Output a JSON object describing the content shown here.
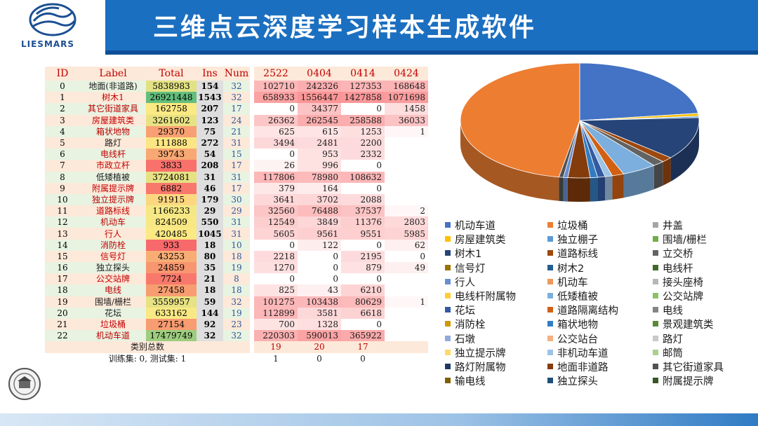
{
  "title": "三维点云深度学习样本生成软件",
  "logo_text": "LIESMARS",
  "table": {
    "headers": [
      "ID",
      "Label",
      "Total",
      "Ins",
      "Num",
      "2522",
      "0404",
      "0414",
      "0424"
    ],
    "rows": [
      {
        "id": "0",
        "label": "地面(非道路)",
        "total": "5838983",
        "ins": "154",
        "num": "32",
        "d": [
          "102710",
          "242326",
          "127353",
          "168648"
        ],
        "red": false,
        "tc": "#e2e184"
      },
      {
        "id": "1",
        "label": "树木1",
        "total": "26921448",
        "ins": "1543",
        "num": "32",
        "d": [
          "658933",
          "1556447",
          "1427858",
          "1071698"
        ],
        "red": true,
        "tc": "#63be7b"
      },
      {
        "id": "2",
        "label": "其它街道家具",
        "total": "162758",
        "ins": "207",
        "num": "17",
        "d": [
          "0",
          "34377",
          "0",
          "1458"
        ],
        "red": true,
        "tc": "#fbe983"
      },
      {
        "id": "3",
        "label": "房屋建筑类",
        "total": "3261602",
        "ins": "123",
        "num": "24",
        "d": [
          "26362",
          "262545",
          "258588",
          "36033"
        ],
        "red": true,
        "tc": "#e8e283"
      },
      {
        "id": "4",
        "label": "箱状地物",
        "total": "29370",
        "ins": "75",
        "num": "21",
        "d": [
          "625",
          "615",
          "1253",
          "1"
        ],
        "red": true,
        "tc": "#f8a073"
      },
      {
        "id": "5",
        "label": "路灯",
        "total": "111888",
        "ins": "272",
        "num": "31",
        "d": [
          "3494",
          "2481",
          "2200",
          ""
        ],
        "red": false,
        "tc": "#fce683"
      },
      {
        "id": "6",
        "label": "电线杆",
        "total": "39743",
        "ins": "54",
        "num": "15",
        "d": [
          "0",
          "953",
          "2332",
          ""
        ],
        "red": true,
        "tc": "#f8a873"
      },
      {
        "id": "7",
        "label": "市政立杆",
        "total": "3833",
        "ins": "208",
        "num": "17",
        "d": [
          "26",
          "996",
          "0",
          ""
        ],
        "red": true,
        "tc": "#f8716b"
      },
      {
        "id": "8",
        "label": "低矮植被",
        "total": "3724081",
        "ins": "31",
        "num": "31",
        "d": [
          "117806",
          "78980",
          "108632",
          ""
        ],
        "red": false,
        "tc": "#e6e183"
      },
      {
        "id": "9",
        "label": "附属提示牌",
        "total": "6882",
        "ins": "46",
        "num": "17",
        "d": [
          "379",
          "164",
          "0",
          ""
        ],
        "red": true,
        "tc": "#f8786b"
      },
      {
        "id": "10",
        "label": "独立提示牌",
        "total": "91915",
        "ins": "179",
        "num": "30",
        "d": [
          "3641",
          "3702",
          "2088",
          ""
        ],
        "red": true,
        "tc": "#fcd780"
      },
      {
        "id": "11",
        "label": "道路标线",
        "total": "1166233",
        "ins": "29",
        "num": "29",
        "d": [
          "32560",
          "76488",
          "37537",
          "2"
        ],
        "red": true,
        "tc": "#f5e884"
      },
      {
        "id": "12",
        "label": "机动车",
        "total": "824509",
        "ins": "550",
        "num": "31",
        "d": [
          "12549",
          "3849",
          "11376",
          "2803"
        ],
        "red": true,
        "tc": "#f8e884"
      },
      {
        "id": "13",
        "label": "行人",
        "total": "420485",
        "ins": "1045",
        "num": "31",
        "d": [
          "5605",
          "9561",
          "9551",
          "5985"
        ],
        "red": true,
        "tc": "#fbe983"
      },
      {
        "id": "14",
        "label": "消防栓",
        "total": "933",
        "ins": "18",
        "num": "10",
        "d": [
          "0",
          "122",
          "0",
          "62"
        ],
        "red": true,
        "tc": "#f8696b"
      },
      {
        "id": "15",
        "label": "信号灯",
        "total": "43253",
        "ins": "80",
        "num": "18",
        "d": [
          "2218",
          "0",
          "2195",
          "0"
        ],
        "red": true,
        "tc": "#f8ad75"
      },
      {
        "id": "16",
        "label": "独立探头",
        "total": "24859",
        "ins": "35",
        "num": "19",
        "d": [
          "1270",
          "0",
          "879",
          "49"
        ],
        "red": false,
        "tc": "#f89670"
      },
      {
        "id": "17",
        "label": "公交站牌",
        "total": "7724",
        "ins": "21",
        "num": "8",
        "d": [
          "0",
          "0",
          "0",
          ""
        ],
        "red": true,
        "tc": "#f8796b"
      },
      {
        "id": "18",
        "label": "电线",
        "total": "27458",
        "ins": "18",
        "num": "18",
        "d": [
          "825",
          "43",
          "6210",
          ""
        ],
        "red": true,
        "tc": "#f89d71"
      },
      {
        "id": "19",
        "label": "围墙/栅栏",
        "total": "3559957",
        "ins": "59",
        "num": "32",
        "d": [
          "101275",
          "103438",
          "80629",
          "1"
        ],
        "red": false,
        "tc": "#e7e283"
      },
      {
        "id": "20",
        "label": "花坛",
        "total": "633162",
        "ins": "144",
        "num": "19",
        "d": [
          "112899",
          "3581",
          "6618",
          ""
        ],
        "red": false,
        "tc": "#f9e984"
      },
      {
        "id": "21",
        "label": "垃圾桶",
        "total": "27154",
        "ins": "92",
        "num": "23",
        "d": [
          "700",
          "1328",
          "0",
          ""
        ],
        "red": true,
        "tc": "#f89c71"
      },
      {
        "id": "22",
        "label": "机动车道",
        "total": "17479749",
        "ins": "32",
        "num": "32",
        "d": [
          "220303",
          "590013",
          "365922",
          ""
        ],
        "red": true,
        "tc": "#9ecd7f"
      }
    ],
    "summary_label": "类别总数",
    "summary_values": [
      "19",
      "20",
      "17",
      ""
    ],
    "split_label": "训练集: 0, 测试集: 1",
    "split_values": [
      "1",
      "0",
      "0",
      ""
    ]
  },
  "legend": [
    {
      "name": "机动车道",
      "color": "#4472c4"
    },
    {
      "name": "垃圾桶",
      "color": "#ed7d31"
    },
    {
      "name": "井盖",
      "color": "#a5a5a5"
    },
    {
      "name": "房屋建筑类",
      "color": "#ffc000"
    },
    {
      "name": "独立棚子",
      "color": "#5b9bd5"
    },
    {
      "name": "围墙/栅栏",
      "color": "#70ad47"
    },
    {
      "name": "树木1",
      "color": "#264478"
    },
    {
      "name": "道路标线",
      "color": "#9e480e"
    },
    {
      "name": "立交桥",
      "color": "#636363"
    },
    {
      "name": "信号灯",
      "color": "#997300"
    },
    {
      "name": "树木2",
      "color": "#255e91"
    },
    {
      "name": "电线杆",
      "color": "#43682b"
    },
    {
      "name": "行人",
      "color": "#698ed0"
    },
    {
      "name": "机动车",
      "color": "#f1975a"
    },
    {
      "name": "接头座椅",
      "color": "#b7b7b7"
    },
    {
      "name": "电线杆附属物",
      "color": "#ffcd33"
    },
    {
      "name": "低矮植被",
      "color": "#7cafdd"
    },
    {
      "name": "公交站牌",
      "color": "#8cc168"
    },
    {
      "name": "花坛",
      "color": "#335aa1"
    },
    {
      "name": "道路隔离结构",
      "color": "#d26012"
    },
    {
      "name": "电线",
      "color": "#848484"
    },
    {
      "name": "消防栓",
      "color": "#cc9a00"
    },
    {
      "name": "箱状地物",
      "color": "#327dc2"
    },
    {
      "name": "景观建筑类",
      "color": "#5a8a39"
    },
    {
      "name": "石墩",
      "color": "#8faadc"
    },
    {
      "name": "公交站台",
      "color": "#f4b183"
    },
    {
      "name": "路灯",
      "color": "#c9c9c9"
    },
    {
      "name": "独立提示牌",
      "color": "#ffd966"
    },
    {
      "name": "非机动车道",
      "color": "#9dc3e6"
    },
    {
      "name": "邮筒",
      "color": "#a9d18e"
    },
    {
      "name": "路灯附属物",
      "color": "#203864"
    },
    {
      "name": "地面非道路",
      "color": "#843c0c"
    },
    {
      "name": "其它街道家具",
      "color": "#525252"
    },
    {
      "name": "输电线",
      "color": "#7f6000"
    },
    {
      "name": "独立探头",
      "color": "#1f4e79"
    },
    {
      "name": "附属提示牌",
      "color": "#375623"
    }
  ],
  "chart_data": {
    "type": "pie",
    "title": "",
    "slices": [
      {
        "name": "机动车道",
        "value": 23.0,
        "color": "#4472c4"
      },
      {
        "name": "房屋建筑类",
        "value": 0.8,
        "color": "#ffc000"
      },
      {
        "name": "独立棚子",
        "value": 0.4,
        "color": "#5b9bd5"
      },
      {
        "name": "树木1",
        "value": 12.0,
        "color": "#264478"
      },
      {
        "name": "道路标线",
        "value": 1.5,
        "color": "#9e480e"
      },
      {
        "name": "电线",
        "value": 1.6,
        "color": "#636363"
      },
      {
        "name": "低矮植被",
        "value": 4.7,
        "color": "#7cafdd"
      },
      {
        "name": "道路隔离结构",
        "value": 1.6,
        "color": "#d26012"
      },
      {
        "name": "非机动车道",
        "value": 1.0,
        "color": "#9dc3e6"
      },
      {
        "name": "花坛",
        "value": 1.0,
        "color": "#335aa1"
      },
      {
        "name": "箱状地物",
        "value": 1.0,
        "color": "#327dc2"
      },
      {
        "name": "地面非道路",
        "value": 3.0,
        "color": "#843c0c"
      },
      {
        "name": "行人",
        "value": 0.6,
        "color": "#698ed0"
      },
      {
        "name": "其它街道家具",
        "value": 0.6,
        "color": "#525252"
      },
      {
        "name": "垃圾桶",
        "value": 47.2,
        "color": "#ed7d31"
      }
    ]
  }
}
